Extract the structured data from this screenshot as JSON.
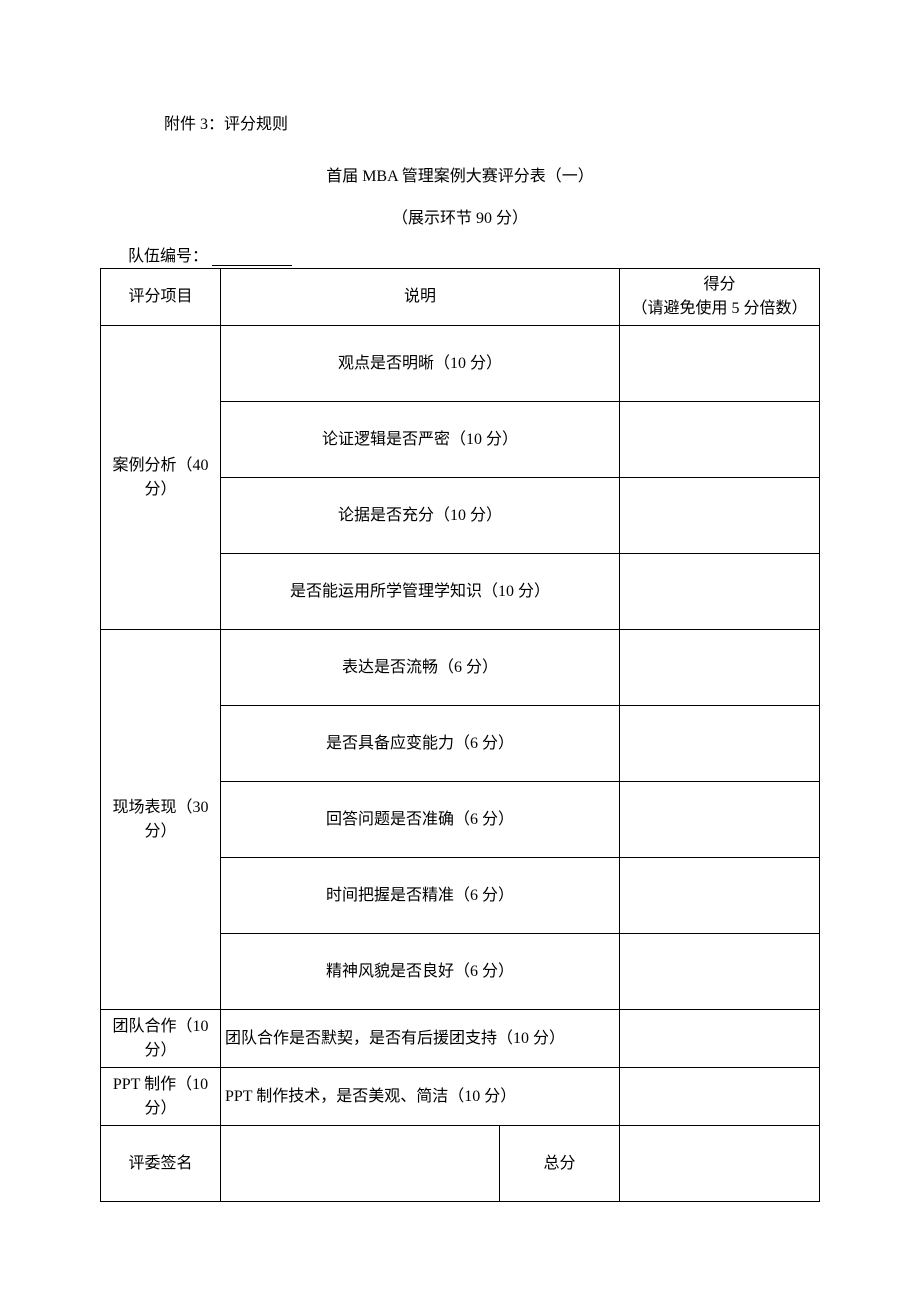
{
  "attachment_label": "附件 3：评分规则",
  "title": "首届 MBA 管理案例大赛评分表（一）",
  "subtitle": "（展示环节 90 分）",
  "team_label": "队伍编号：",
  "headers": {
    "col1": "评分项目",
    "col2": "说明",
    "col3_line1": "得分",
    "col3_line2": "（请避免使用 5 分倍数）"
  },
  "sections": {
    "s1": {
      "name": "案例分析（40分）",
      "items": [
        "观点是否明晰（10 分）",
        "论证逻辑是否严密（10 分）",
        "论据是否充分（10 分）",
        "是否能运用所学管理学知识（10 分）"
      ]
    },
    "s2": {
      "name": "现场表现（30分）",
      "items": [
        "表达是否流畅（6 分）",
        "是否具备应变能力（6 分）",
        "回答问题是否准确（6 分）",
        "时间把握是否精准（6 分）",
        "精神风貌是否良好（6 分）"
      ]
    },
    "s3": {
      "name": "团队合作（10分）",
      "desc": "团队合作是否默契，是否有后援团支持（10 分）"
    },
    "s4": {
      "name": "PPT 制作（10分）",
      "desc": "PPT 制作技术，是否美观、简洁（10 分）"
    }
  },
  "footer": {
    "sign_label": "评委签名",
    "total_label": "总分"
  }
}
